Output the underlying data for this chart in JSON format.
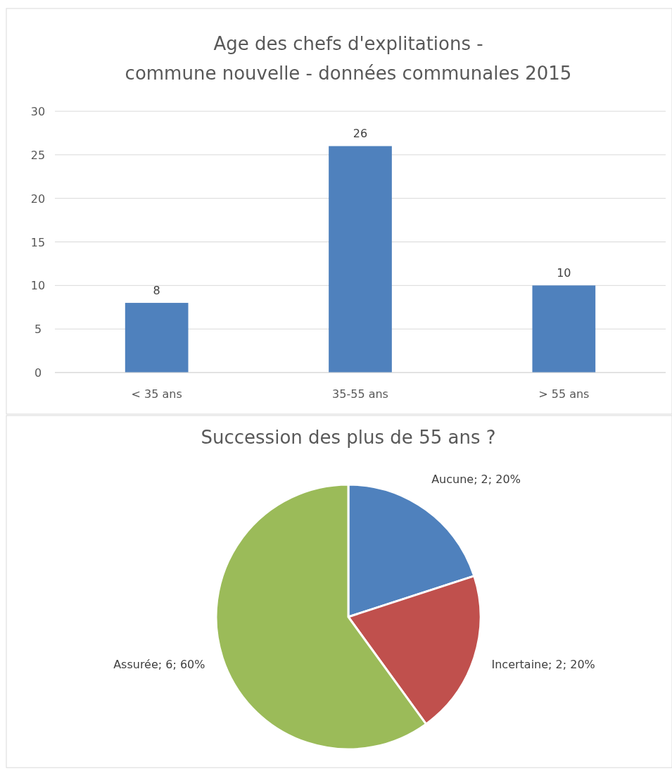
{
  "chart_data": [
    {
      "type": "bar",
      "title": "Age des chefs d'explitations -\ncommune nouvelle - données communales 2015",
      "categories": [
        "< 35 ans",
        "35-55 ans",
        "> 55 ans"
      ],
      "values": [
        8,
        26,
        10
      ],
      "color": "#4f81bd",
      "ylim": [
        0,
        30
      ],
      "yticks": [
        0,
        5,
        10,
        15,
        20,
        25,
        30
      ],
      "grid": "y",
      "data_labels": true
    },
    {
      "type": "pie",
      "title": "Succession des plus de 55 ans ?",
      "categories": [
        "Aucune",
        "Incertaine",
        "Assurée"
      ],
      "values": [
        2,
        2,
        6
      ],
      "colors": [
        "#4f81bd",
        "#c0504d",
        "#9bbb59"
      ],
      "value_labels": [
        "2; 20%",
        "2; 20%",
        "6; 60%"
      ]
    }
  ]
}
